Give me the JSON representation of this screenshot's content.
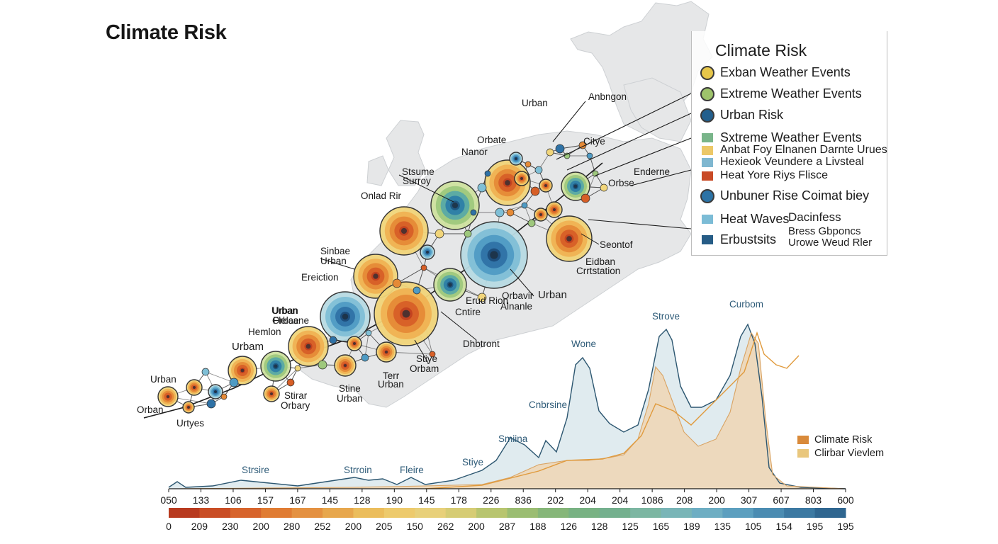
{
  "title": "Climate Risk",
  "legend": {
    "title": "Climate Risk",
    "items": [
      {
        "label": "Exban Weather Events",
        "shape": "circle",
        "color": "#e6c64a"
      },
      {
        "label": "Extreme Weather Events",
        "shape": "circle",
        "color": "#9ec36b"
      },
      {
        "label": "Urban Risk",
        "shape": "circle",
        "color": "#225f8d"
      },
      {
        "label": "Sxtreme Weather Events",
        "shape": "square",
        "color": "#79b58a"
      },
      {
        "label": "Anbat Foy Elnanen Darnte Urues",
        "shape": "square",
        "color": "#ecc868"
      },
      {
        "label": "Hexieok Veundere a Livsteal",
        "shape": "square",
        "color": "#7fb7d0"
      },
      {
        "label": "Heat Yore Riys Flisce",
        "shape": "square",
        "color": "#c94a26"
      },
      {
        "label": "Unbuner Rise Coimat biey",
        "shape": "circle",
        "color": "#2c73a6"
      },
      {
        "label": "Heat Waves",
        "shape": "square",
        "color": "#7cbcd6"
      },
      {
        "label": "Erbustsits",
        "shape": "square",
        "color": "#265c86"
      }
    ],
    "notes": [
      "Dacinfess",
      "Bress Gbponcs",
      "Urowe Weud Rler"
    ]
  },
  "map_labels": [
    "Anbngon",
    "Urban",
    "Citye",
    "Orbate",
    "Nanor",
    "Enderne",
    "Orbse",
    "Stsume",
    "Surroy",
    "Onlad Rir",
    "Seontof",
    "Eidban",
    "Crrtstation",
    "Sinbae",
    "Urban",
    "Ereiction",
    "Urban",
    "Orbae",
    "Erud Rion",
    "Cntire",
    "Orbavir",
    "Alnanle",
    "Urban",
    "Flelcane",
    "Hemlon",
    "Urbam",
    "Dhbtront",
    "Stiye",
    "Orbam",
    "Terr",
    "Urban",
    "Urban",
    "Stine",
    "Urban",
    "Orban",
    "Stirar",
    "Orbary",
    "Urban",
    "Urtyes"
  ],
  "chart_data": {
    "type": "area",
    "x_ticks": [
      "050",
      "133",
      "106",
      "157",
      "167",
      "145",
      "128",
      "190",
      "145",
      "178",
      "226",
      "836",
      "202",
      "204",
      "204",
      "1086",
      "208",
      "200",
      "307",
      "607",
      "803",
      "600"
    ],
    "color_scale_ticks": [
      "0",
      "209",
      "230",
      "200",
      "280",
      "252",
      "200",
      "205",
      "150",
      "262",
      "200",
      "287",
      "188",
      "126",
      "128",
      "125",
      "165",
      "189",
      "135",
      "105",
      "154",
      "195",
      "195"
    ],
    "color_scale": [
      "#b83a1f",
      "#c94d25",
      "#d7642c",
      "#e07c33",
      "#e49141",
      "#e7a74d",
      "#ebbd5c",
      "#edca6c",
      "#e8d07a",
      "#d6cc74",
      "#b8c56f",
      "#9bbd72",
      "#86b679",
      "#78b283",
      "#74b08e",
      "#7cb6a2",
      "#79b5b7",
      "#6eaec3",
      "#5c9fbf",
      "#4b8cb2",
      "#3c79a2",
      "#2f6690"
    ],
    "series": [
      {
        "name": "Climate Risk",
        "color": "#d98a3a"
      },
      {
        "name": "Clirbar Vievlem",
        "color": "#e9c77d"
      }
    ],
    "peak_labels": [
      "Strsire",
      "Strroin",
      "Fleire",
      "Stiye",
      "Smiina",
      "Cnbrsine",
      "Wone",
      "Strove",
      "Curbom"
    ]
  },
  "colors": {
    "land": "#e6e7e8",
    "land_stroke": "#c9cbce",
    "network": "#2a2a2a"
  }
}
